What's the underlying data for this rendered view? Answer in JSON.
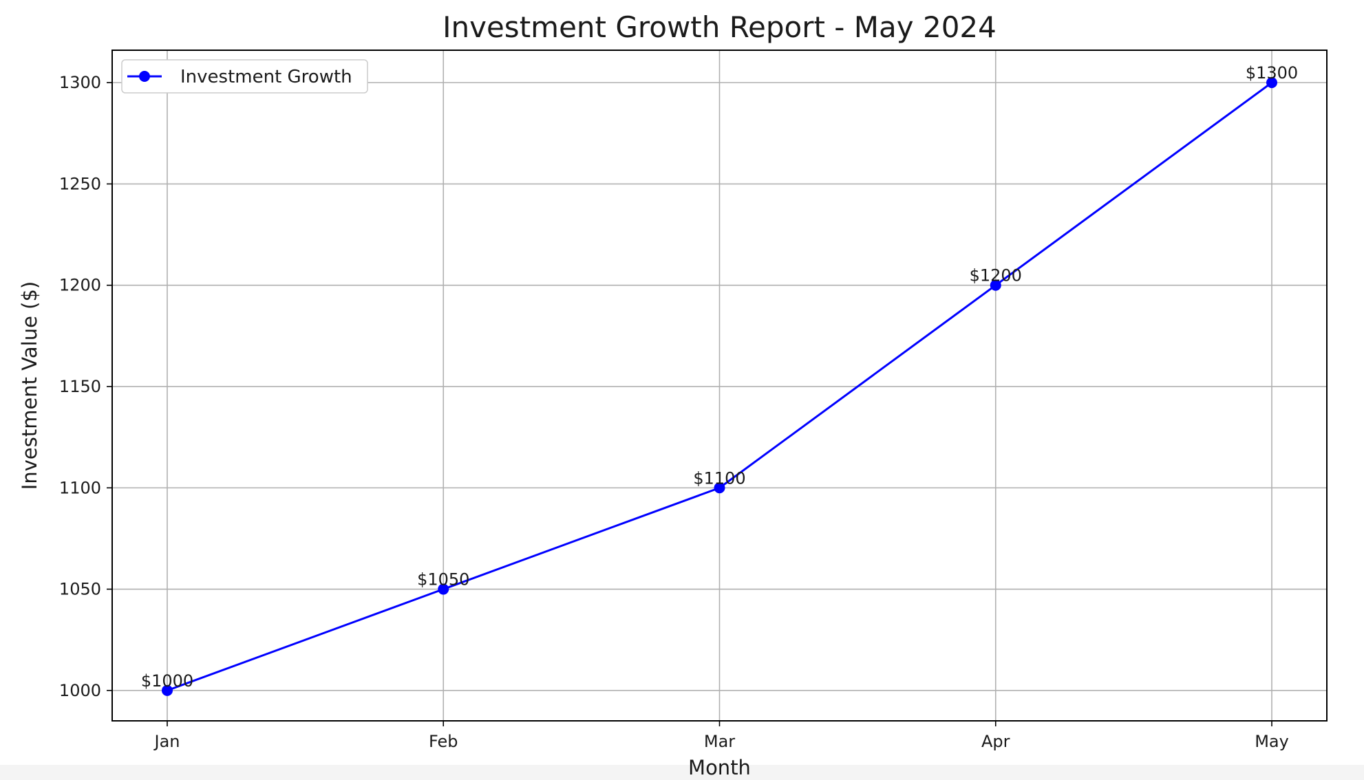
{
  "chart_data": {
    "type": "line",
    "title": "Investment Growth Report - May 2024",
    "xlabel": "Month",
    "ylabel": "Investment Value ($)",
    "categories": [
      "Jan",
      "Feb",
      "Mar",
      "Apr",
      "May"
    ],
    "ylim": [
      985,
      1316
    ],
    "yticks": [
      1000,
      1050,
      1100,
      1150,
      1200,
      1250,
      1300
    ],
    "grid": true,
    "legend_position": "upper-left",
    "series": [
      {
        "name": "Investment Growth",
        "color": "#0000ff",
        "marker": "circle",
        "values": [
          1000,
          1050,
          1100,
          1200,
          1300
        ],
        "data_labels": [
          "$1000",
          "$1050",
          "$1100",
          "$1200",
          "$1300"
        ]
      }
    ]
  }
}
